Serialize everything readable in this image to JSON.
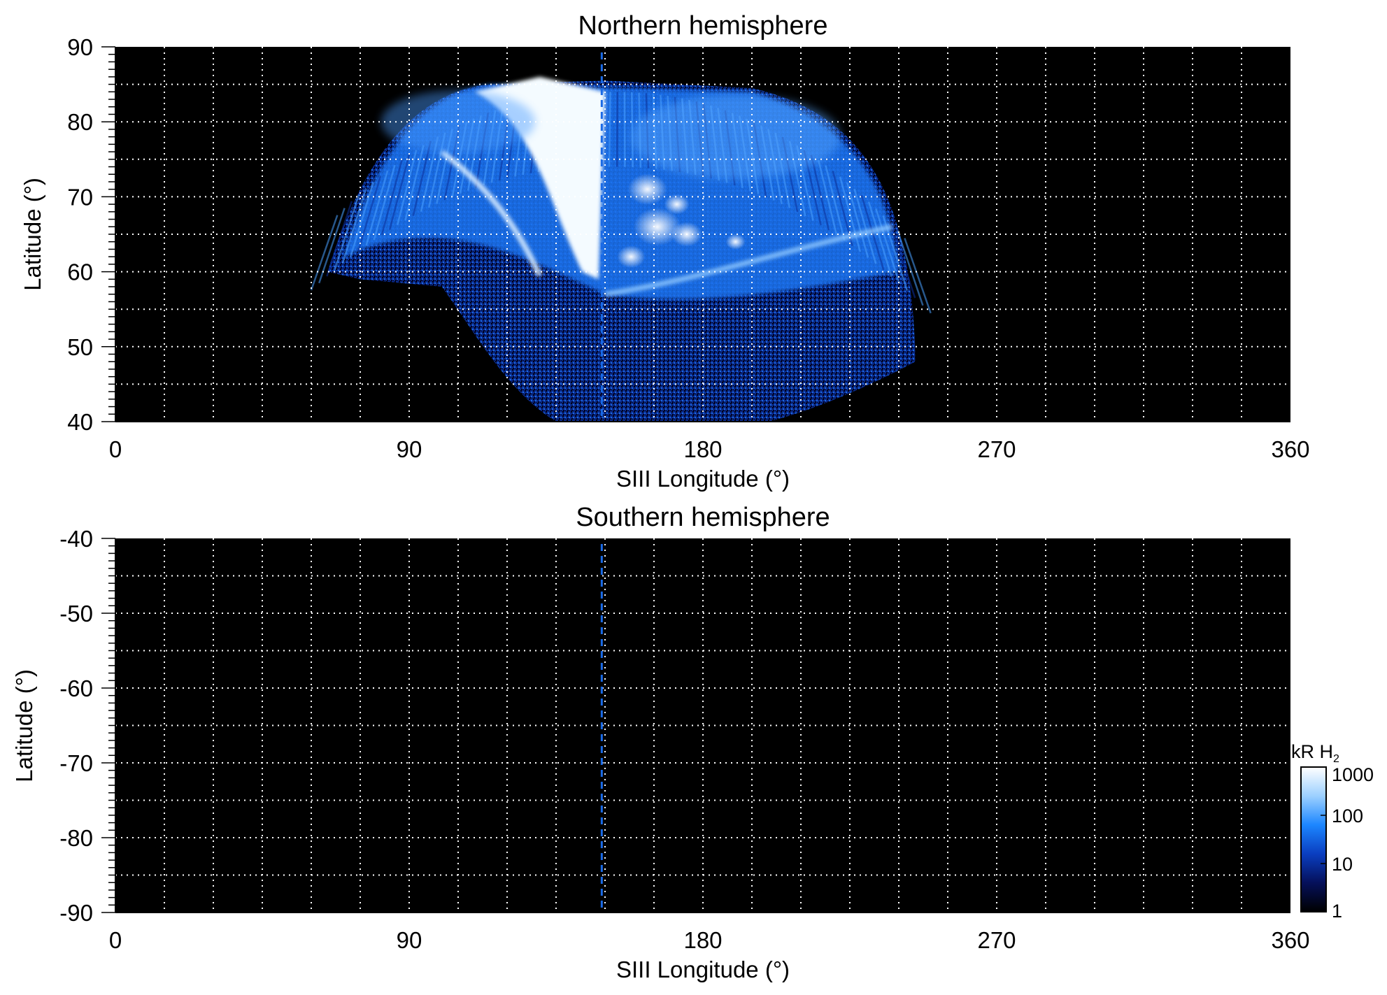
{
  "chart_data": [
    {
      "type": "heatmap",
      "title": "Northern hemisphere",
      "xlabel": "SIII Longitude (°)",
      "ylabel": "Latitude (°)",
      "xlim": [
        0,
        360
      ],
      "ylim": [
        40,
        90
      ],
      "xticks": [
        "0",
        "90",
        "180",
        "270",
        "360"
      ],
      "yticks": [
        "40",
        "50",
        "60",
        "70",
        "80",
        "90"
      ],
      "grid": "dotted white, every 15° longitude and 5° latitude",
      "background": "#000000",
      "reference_longitude": 149,
      "emission_region": {
        "longitude_range": [
          65,
          245
        ],
        "latitude_range": [
          40,
          86
        ],
        "brightest_longitude_range": [
          135,
          150
        ],
        "main_oval_latitude": [
          60,
          66
        ]
      }
    },
    {
      "type": "heatmap",
      "title": "Southern hemisphere",
      "xlabel": "SIII Longitude (°)",
      "ylabel": "Latitude (°)",
      "xlim": [
        0,
        360
      ],
      "ylim": [
        -90,
        -40
      ],
      "xticks": [
        "0",
        "90",
        "180",
        "270",
        "360"
      ],
      "yticks": [
        "-40",
        "-50",
        "-60",
        "-70",
        "-80",
        "-90"
      ],
      "grid": "dotted white, every 15° longitude and 5° latitude",
      "background": "#000000",
      "reference_longitude": 149,
      "emission_region": null
    }
  ],
  "colorbar": {
    "label_main": "kR H",
    "label_sub": "2",
    "scale": "log",
    "range": [
      1,
      1000
    ],
    "ticks": [
      "1",
      "10",
      "100",
      "1000"
    ],
    "colors": [
      "#000000",
      "#05105a",
      "#0a3ec0",
      "#1c86ff",
      "#9cd0ff",
      "#ffffff"
    ]
  }
}
